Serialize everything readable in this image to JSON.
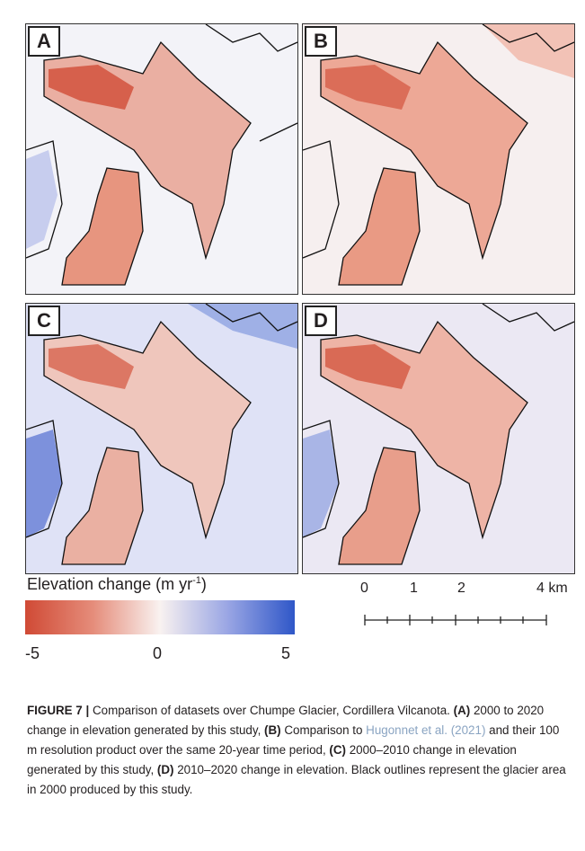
{
  "panels": [
    {
      "id": "A",
      "label": "A"
    },
    {
      "id": "B",
      "label": "B"
    },
    {
      "id": "C",
      "label": "C"
    },
    {
      "id": "D",
      "label": "D"
    }
  ],
  "colorbar": {
    "title": "Elevation change (m yr",
    "title_sup": "-1",
    "title_end": ")",
    "ticks": [
      "-5",
      "0",
      "5"
    ],
    "colors": [
      "#d04a35",
      "#f9f2f0",
      "#2f57c8"
    ]
  },
  "scale": {
    "labels": [
      "0",
      "1",
      "2",
      "4 km"
    ]
  },
  "caption": {
    "figure_label": "FIGURE 7 |",
    "intro": " Comparison of datasets over Chumpe Glacier, Cordillera Vilcanota. ",
    "a_tag": "(A)",
    "a_text": " 2000 to 2020 change in elevation generated by this study, ",
    "b_tag": "(B)",
    "b_text1": " Comparison to ",
    "b_ref": "Hugonnet et al. (2021)",
    "b_text2": " and their 100 m resolution product over the same 20-year time period, ",
    "c_tag": "(C)",
    "c_text": " 2000–2010 change in elevation generated by this study, ",
    "d_tag": "(D)",
    "d_text": " 2010–2020 change in elevation. Black outlines represent the glacier area in 2000 produced by this study."
  }
}
